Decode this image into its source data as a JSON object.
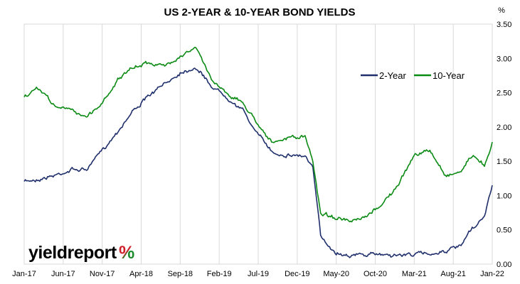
{
  "chart_data": {
    "type": "line",
    "title": "US 2-YEAR & 10-YEAR BOND YIELDS",
    "y_unit": "%",
    "ylim": [
      0,
      3.5
    ],
    "y_ticks": [
      "0.00",
      "0.50",
      "1.00",
      "1.50",
      "2.00",
      "2.50",
      "3.00",
      "3.50"
    ],
    "y_tick_values": [
      0,
      0.5,
      1.0,
      1.5,
      2.0,
      2.5,
      3.0,
      3.5
    ],
    "y_axis_side": "right",
    "grid": "vertical",
    "legend_position": "upper-right",
    "x_ticks": [
      "Jan-17",
      "Jun-17",
      "Nov-17",
      "Apr-18",
      "Sep-18",
      "Feb-19",
      "Jul-19",
      "Dec-19",
      "May-20",
      "Oct-20",
      "Mar-21",
      "Aug-21",
      "Jan-22"
    ],
    "x_range": [
      "2017-01",
      "2022-01"
    ],
    "series": [
      {
        "name": "2-Year",
        "color": "#1f2f6b",
        "x": [
          "2017-01",
          "2017-03",
          "2017-05",
          "2017-07",
          "2017-09",
          "2017-11",
          "2018-01",
          "2018-03",
          "2018-05",
          "2018-07",
          "2018-09",
          "2018-11",
          "2019-01",
          "2019-03",
          "2019-05",
          "2019-07",
          "2019-09",
          "2019-11",
          "2020-01",
          "2020-02",
          "2020-03",
          "2020-05",
          "2020-07",
          "2020-09",
          "2020-11",
          "2021-01",
          "2021-03",
          "2021-05",
          "2021-07",
          "2021-09",
          "2021-10",
          "2021-11",
          "2021-12",
          "2022-01"
        ],
        "values": [
          1.2,
          1.25,
          1.3,
          1.38,
          1.38,
          1.65,
          1.95,
          2.25,
          2.45,
          2.62,
          2.8,
          2.88,
          2.6,
          2.45,
          2.25,
          1.88,
          1.62,
          1.6,
          1.58,
          1.4,
          0.4,
          0.17,
          0.14,
          0.13,
          0.15,
          0.13,
          0.15,
          0.15,
          0.2,
          0.25,
          0.45,
          0.55,
          0.7,
          1.15
        ]
      },
      {
        "name": "10-Year",
        "color": "#0b8a14",
        "x": [
          "2017-01",
          "2017-03",
          "2017-05",
          "2017-07",
          "2017-09",
          "2017-11",
          "2018-01",
          "2018-03",
          "2018-05",
          "2018-07",
          "2018-09",
          "2018-11",
          "2019-01",
          "2019-03",
          "2019-05",
          "2019-07",
          "2019-09",
          "2019-11",
          "2020-01",
          "2020-02",
          "2020-03",
          "2020-05",
          "2020-07",
          "2020-09",
          "2020-11",
          "2021-01",
          "2021-03",
          "2021-05",
          "2021-07",
          "2021-09",
          "2021-10",
          "2021-11",
          "2021-12",
          "2022-01"
        ],
        "values": [
          2.45,
          2.55,
          2.3,
          2.25,
          2.15,
          2.35,
          2.7,
          2.85,
          2.95,
          2.88,
          3.05,
          3.15,
          2.7,
          2.5,
          2.35,
          2.05,
          1.75,
          1.85,
          1.85,
          1.5,
          0.75,
          0.68,
          0.6,
          0.68,
          0.9,
          1.15,
          1.6,
          1.65,
          1.3,
          1.35,
          1.55,
          1.55,
          1.45,
          1.78
        ]
      }
    ]
  },
  "logo": {
    "text": "yieldreport",
    "symbol": "%",
    "colors": {
      "word": "#000000",
      "pct_red": "#d0202a",
      "pct_green": "#1a8a2a"
    }
  }
}
